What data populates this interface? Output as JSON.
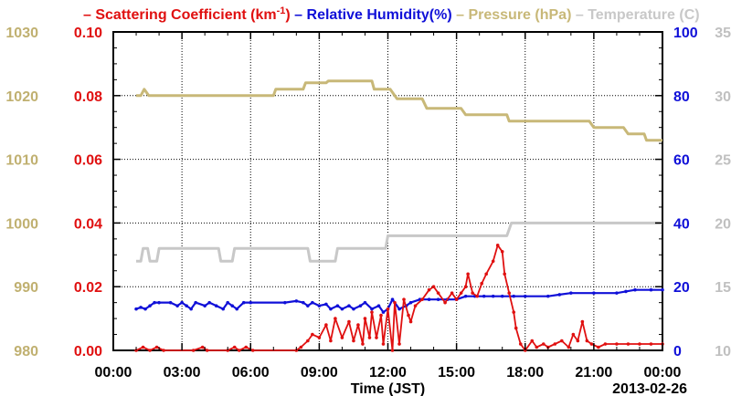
{
  "chart_data": {
    "type": "line",
    "date_label": "2013-02-26",
    "xlabel": "Time (JST)",
    "x_range_hours": [
      0,
      24
    ],
    "x_ticks": [
      "00:00",
      "03:00",
      "06:00",
      "09:00",
      "12:00",
      "15:00",
      "18:00",
      "21:00",
      "00:00"
    ],
    "grid": true,
    "legend_position": "top",
    "legend": [
      {
        "key": "scat",
        "prefix": "Scattering Coefficient (km",
        "sup": "-1",
        "suffix": ")",
        "color": "#e01010"
      },
      {
        "key": "rh",
        "text": "Relative Humidity(%)",
        "color": "#1010d8"
      },
      {
        "key": "pres",
        "text": "Pressure (hPa)",
        "color": "#c8b878"
      },
      {
        "key": "temp",
        "text": "Temperature (C)",
        "color": "#c8c8c8"
      }
    ],
    "axes": {
      "pressure": {
        "side": "left-outer",
        "range": [
          980,
          1030
        ],
        "ticks": [
          "980",
          "990",
          "1000",
          "1010",
          "1020",
          "1030"
        ],
        "color": "#c0b070"
      },
      "scattering": {
        "side": "left-inner",
        "range": [
          0,
          0.1
        ],
        "ticks": [
          "0.00",
          "0.02",
          "0.04",
          "0.06",
          "0.08",
          "0.10"
        ],
        "color": "#e01010"
      },
      "humidity": {
        "side": "right-inner",
        "range": [
          0,
          100
        ],
        "ticks": [
          "0",
          "20",
          "40",
          "60",
          "80",
          "100"
        ],
        "color": "#1010d8"
      },
      "temperature": {
        "side": "right-outer",
        "range": [
          10,
          35
        ],
        "ticks": [
          "10",
          "15",
          "20",
          "25",
          "30",
          "35"
        ],
        "color": "#c0c0c0"
      }
    },
    "series": [
      {
        "name": "Pressure (hPa)",
        "axis": "pressure",
        "color": "#c8b878",
        "width": 3,
        "points": [
          [
            1.0,
            1020
          ],
          [
            1.2,
            1020
          ],
          [
            1.35,
            1021
          ],
          [
            1.55,
            1020
          ],
          [
            5.0,
            1020
          ],
          [
            7.0,
            1020
          ],
          [
            7.1,
            1021
          ],
          [
            8.3,
            1021
          ],
          [
            8.4,
            1022
          ],
          [
            9.3,
            1022
          ],
          [
            9.4,
            1022.3
          ],
          [
            11.3,
            1022.3
          ],
          [
            11.4,
            1021
          ],
          [
            12.1,
            1021
          ],
          [
            12.4,
            1019.5
          ],
          [
            13.5,
            1019.5
          ],
          [
            13.7,
            1018
          ],
          [
            15.2,
            1018
          ],
          [
            15.4,
            1017
          ],
          [
            17.2,
            1017
          ],
          [
            17.3,
            1016
          ],
          [
            19.5,
            1016
          ],
          [
            19.6,
            1016
          ],
          [
            20.8,
            1016
          ],
          [
            21.0,
            1015
          ],
          [
            22.3,
            1015
          ],
          [
            22.5,
            1014
          ],
          [
            23.2,
            1014
          ],
          [
            23.3,
            1013
          ],
          [
            24.0,
            1013
          ]
        ]
      },
      {
        "name": "Temperature (C)",
        "axis": "temperature",
        "color": "#c8c8c8",
        "width": 3,
        "points": [
          [
            1.0,
            17
          ],
          [
            1.2,
            17
          ],
          [
            1.3,
            18
          ],
          [
            1.5,
            18
          ],
          [
            1.6,
            17
          ],
          [
            1.9,
            17
          ],
          [
            2.0,
            18
          ],
          [
            4.6,
            18
          ],
          [
            4.7,
            17
          ],
          [
            5.2,
            17
          ],
          [
            5.3,
            18
          ],
          [
            8.5,
            18
          ],
          [
            8.6,
            17
          ],
          [
            9.7,
            17
          ],
          [
            9.8,
            18
          ],
          [
            11.9,
            18
          ],
          [
            12.0,
            19
          ],
          [
            17.2,
            19
          ],
          [
            17.4,
            20
          ],
          [
            24.0,
            20
          ]
        ]
      },
      {
        "name": "Relative Humidity(%)",
        "axis": "humidity",
        "color": "#1010d8",
        "width": 2.2,
        "markers": true,
        "points": [
          [
            1.0,
            13
          ],
          [
            1.2,
            13.5
          ],
          [
            1.4,
            13
          ],
          [
            1.6,
            14
          ],
          [
            1.8,
            15
          ],
          [
            2.0,
            15
          ],
          [
            2.5,
            15
          ],
          [
            2.8,
            14
          ],
          [
            3.0,
            15
          ],
          [
            3.2,
            14
          ],
          [
            3.4,
            13
          ],
          [
            3.6,
            15
          ],
          [
            4.0,
            14
          ],
          [
            4.2,
            15
          ],
          [
            4.5,
            14
          ],
          [
            4.8,
            13
          ],
          [
            5.0,
            15
          ],
          [
            5.2,
            14
          ],
          [
            5.4,
            13
          ],
          [
            5.7,
            15
          ],
          [
            6.0,
            15
          ],
          [
            7.5,
            15
          ],
          [
            8.0,
            15.5
          ],
          [
            8.3,
            15
          ],
          [
            8.5,
            14
          ],
          [
            8.7,
            15
          ],
          [
            9.0,
            14
          ],
          [
            9.3,
            14.5
          ],
          [
            9.5,
            13
          ],
          [
            9.8,
            14
          ],
          [
            10.0,
            13
          ],
          [
            10.3,
            14
          ],
          [
            10.5,
            13
          ],
          [
            10.8,
            14
          ],
          [
            11.0,
            15
          ],
          [
            11.3,
            13
          ],
          [
            11.6,
            14
          ],
          [
            11.8,
            12
          ],
          [
            12.0,
            13
          ],
          [
            12.2,
            16
          ],
          [
            12.5,
            13
          ],
          [
            12.8,
            14
          ],
          [
            13.0,
            15
          ],
          [
            13.4,
            16
          ],
          [
            13.8,
            16
          ],
          [
            14.2,
            16
          ],
          [
            14.6,
            16
          ],
          [
            15.0,
            16
          ],
          [
            15.4,
            17
          ],
          [
            15.8,
            17
          ],
          [
            16.2,
            17
          ],
          [
            16.6,
            17
          ],
          [
            17.0,
            17
          ],
          [
            17.5,
            17
          ],
          [
            18.0,
            17
          ],
          [
            19.0,
            17
          ],
          [
            19.5,
            17.5
          ],
          [
            20.0,
            18
          ],
          [
            21.0,
            18
          ],
          [
            22.0,
            18
          ],
          [
            22.4,
            18.5
          ],
          [
            22.8,
            19
          ],
          [
            23.5,
            19
          ],
          [
            24.0,
            19
          ]
        ]
      },
      {
        "name": "Scattering Coefficient (km-1)",
        "axis": "scattering",
        "color": "#e01010",
        "width": 1.8,
        "markers": true,
        "points": [
          [
            1.0,
            0.0
          ],
          [
            1.3,
            0.001
          ],
          [
            1.6,
            0.0
          ],
          [
            1.9,
            0.001
          ],
          [
            2.2,
            0.0
          ],
          [
            3.5,
            0.0
          ],
          [
            3.9,
            0.001
          ],
          [
            4.1,
            0.0
          ],
          [
            5.0,
            0.0
          ],
          [
            5.3,
            0.001
          ],
          [
            5.5,
            0.0
          ],
          [
            5.8,
            0.001
          ],
          [
            6.1,
            0.0
          ],
          [
            8.0,
            0.0
          ],
          [
            8.2,
            0.001
          ],
          [
            8.5,
            0.003
          ],
          [
            8.7,
            0.005
          ],
          [
            9.0,
            0.004
          ],
          [
            9.3,
            0.008
          ],
          [
            9.5,
            0.003
          ],
          [
            9.7,
            0.01
          ],
          [
            10.0,
            0.004
          ],
          [
            10.3,
            0.009
          ],
          [
            10.5,
            0.003
          ],
          [
            10.7,
            0.008
          ],
          [
            10.9,
            0.002
          ],
          [
            11.0,
            0.01
          ],
          [
            11.2,
            0.004
          ],
          [
            11.3,
            0.012
          ],
          [
            11.5,
            0.004
          ],
          [
            11.7,
            0.011
          ],
          [
            11.8,
            0.002
          ],
          [
            12.0,
            0.013
          ],
          [
            12.2,
            0.0
          ],
          [
            12.3,
            0.015
          ],
          [
            12.5,
            0.002
          ],
          [
            12.7,
            0.016
          ],
          [
            12.9,
            0.011
          ],
          [
            13.0,
            0.009
          ],
          [
            13.2,
            0.014
          ],
          [
            13.5,
            0.016
          ],
          [
            13.8,
            0.019
          ],
          [
            14.0,
            0.02
          ],
          [
            14.2,
            0.018
          ],
          [
            14.5,
            0.015
          ],
          [
            14.8,
            0.018
          ],
          [
            15.0,
            0.016
          ],
          [
            15.2,
            0.018
          ],
          [
            15.4,
            0.02
          ],
          [
            15.5,
            0.024
          ],
          [
            15.7,
            0.018
          ],
          [
            15.9,
            0.017
          ],
          [
            16.1,
            0.021
          ],
          [
            16.3,
            0.024
          ],
          [
            16.6,
            0.028
          ],
          [
            16.8,
            0.033
          ],
          [
            17.0,
            0.031
          ],
          [
            17.1,
            0.024
          ],
          [
            17.3,
            0.018
          ],
          [
            17.5,
            0.012
          ],
          [
            17.6,
            0.007
          ],
          [
            17.8,
            0.002
          ],
          [
            18.0,
            0.0
          ],
          [
            18.3,
            0.003
          ],
          [
            18.5,
            0.001
          ],
          [
            18.8,
            0.002
          ],
          [
            19.0,
            0.001
          ],
          [
            19.3,
            0.002
          ],
          [
            19.6,
            0.003
          ],
          [
            19.9,
            0.001
          ],
          [
            20.1,
            0.005
          ],
          [
            20.3,
            0.003
          ],
          [
            20.5,
            0.009
          ],
          [
            20.7,
            0.003
          ],
          [
            20.9,
            0.002
          ],
          [
            21.2,
            0.001
          ],
          [
            21.5,
            0.002
          ],
          [
            22.0,
            0.002
          ],
          [
            22.5,
            0.002
          ],
          [
            23.0,
            0.002
          ],
          [
            23.5,
            0.002
          ],
          [
            24.0,
            0.002
          ]
        ]
      }
    ]
  }
}
